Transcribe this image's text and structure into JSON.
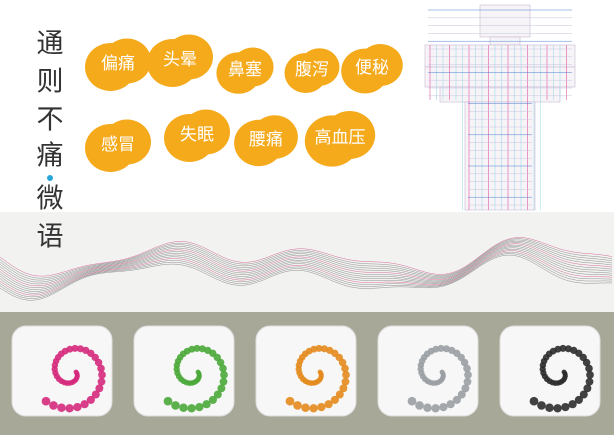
{
  "header": {
    "title_lines": [
      "通",
      "则",
      "不",
      "痛",
      "微",
      "语"
    ]
  },
  "symptoms": [
    "偏痛",
    "头晕",
    "鼻塞",
    "腹泻",
    "便秘",
    "感冒",
    "失眠",
    "腰痛",
    "高血压"
  ]
}
